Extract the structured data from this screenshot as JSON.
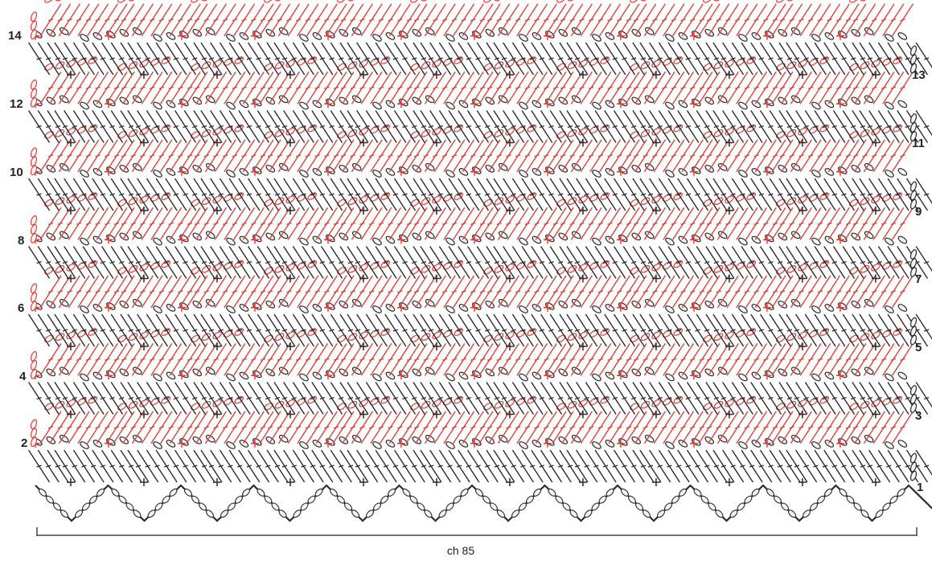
{
  "chart": {
    "row_labels": [
      "1",
      "2",
      "3",
      "4",
      "5",
      "6",
      "7",
      "8",
      "9",
      "10",
      "11",
      "12",
      "13",
      "14"
    ],
    "foundation_label": "ch 85",
    "colors": {
      "odd_rows": "#2b2b2b",
      "even_rows": "#e0403a",
      "chain_fill": "#f4f4f4",
      "background": "#ffffff"
    },
    "icons": {
      "tr": "treble-crochet-symbol-icon",
      "ch": "chain-stitch-symbol-icon",
      "sc": "single-crochet-symbol-icon"
    }
  }
}
